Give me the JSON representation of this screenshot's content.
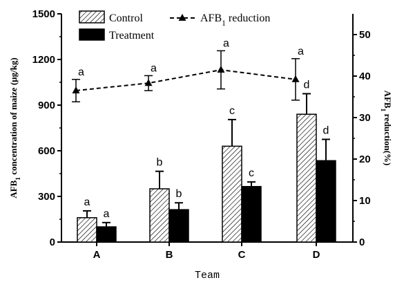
{
  "chart_data": {
    "type": "bar",
    "categories": [
      "A",
      "B",
      "C",
      "D"
    ],
    "series": [
      {
        "name": "Control",
        "style": "hatched",
        "values": [
          160,
          350,
          630,
          840
        ],
        "errors": [
          45,
          115,
          175,
          135
        ],
        "labels": [
          "a",
          "b",
          "c",
          "d"
        ]
      },
      {
        "name": "Treatment",
        "style": "solid",
        "values": [
          100,
          213,
          365,
          535
        ],
        "errors": [
          28,
          45,
          30,
          140
        ],
        "labels": [
          "a",
          "b",
          "c",
          "d"
        ]
      }
    ],
    "line_series": {
      "name_main": "AFB",
      "name_sub": "1",
      "name_rest": " reduction",
      "values": [
        36.5,
        38.3,
        41.5,
        39.2
      ],
      "errors": [
        2.7,
        1.8,
        4.6,
        5.0
      ],
      "labels": [
        "a",
        "a",
        "a",
        "a"
      ],
      "style": "dashed",
      "marker": "triangle"
    },
    "xlabel": "Team",
    "ylabel_left": {
      "main": "AFB",
      "sub": "1",
      "rest": " concentration of maize (μg/kg)"
    },
    "ylabel_right": {
      "main": "AFB",
      "sub": "1",
      "rest": " reduction(%)"
    },
    "ylim_left": [
      0,
      1500
    ],
    "yticks_left": [
      0,
      300,
      600,
      900,
      1200,
      1500
    ],
    "ylim_right": [
      0,
      55
    ],
    "yticks_right": [
      0,
      10,
      20,
      30,
      40,
      50
    ],
    "grid": false,
    "legend_position": "top",
    "colors": {
      "treatment": "#000000",
      "control_fill": "#ffffff",
      "line": "#000000"
    }
  }
}
